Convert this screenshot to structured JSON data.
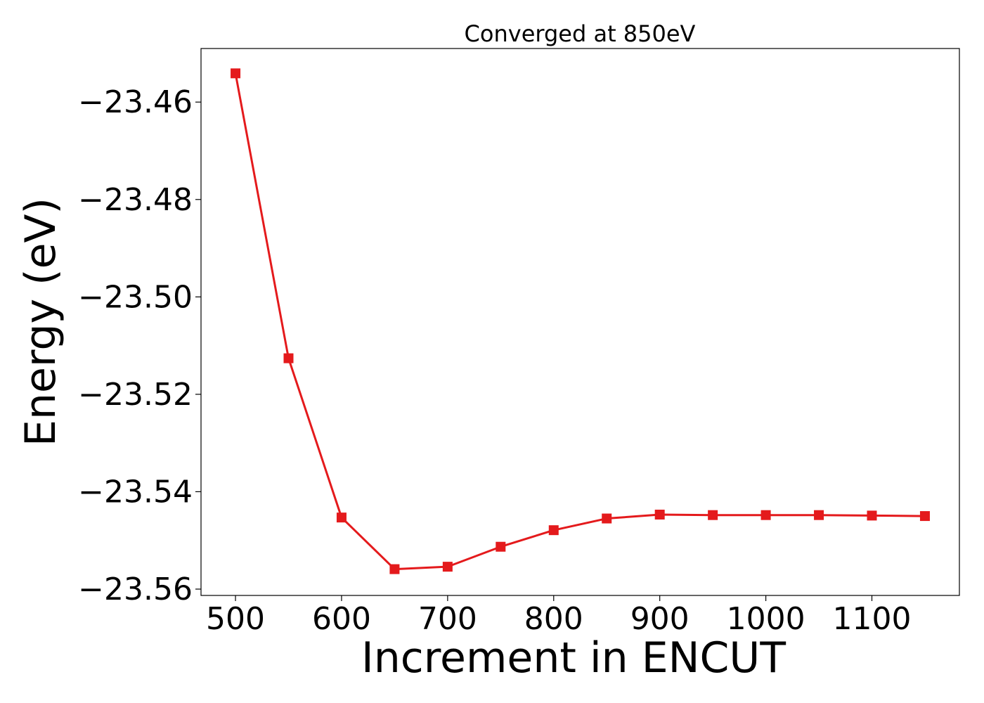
{
  "chart_data": {
    "type": "line",
    "title": "Converged at 850eV",
    "xlabel": "Increment in ENCUT",
    "ylabel": "Energy (eV)",
    "xlim": [
      467.5,
      1182.5
    ],
    "ylim": [
      -23.5613,
      -23.449
    ],
    "x_ticks": [
      500,
      600,
      700,
      800,
      900,
      1000,
      1100
    ],
    "x_tick_labels": [
      "500",
      "600",
      "700",
      "800",
      "900",
      "1000",
      "1100"
    ],
    "y_ticks": [
      -23.46,
      -23.48,
      -23.5,
      -23.52,
      -23.54,
      -23.56
    ],
    "y_tick_labels": [
      "−23.46",
      "−23.48",
      "−23.50",
      "−23.52",
      "−23.54",
      "−23.56"
    ],
    "grid": false,
    "series": [
      {
        "color": "#e41a1c",
        "marker": "square",
        "x": [
          500,
          550,
          600,
          650,
          700,
          750,
          800,
          850,
          900,
          950,
          1000,
          1050,
          1100,
          1150
        ],
        "y": [
          -23.4541,
          -23.5126,
          -23.5453,
          -23.5559,
          -23.5554,
          -23.5513,
          -23.5479,
          -23.5455,
          -23.5447,
          -23.5448,
          -23.5448,
          -23.5448,
          -23.5449,
          -23.545
        ]
      }
    ]
  }
}
